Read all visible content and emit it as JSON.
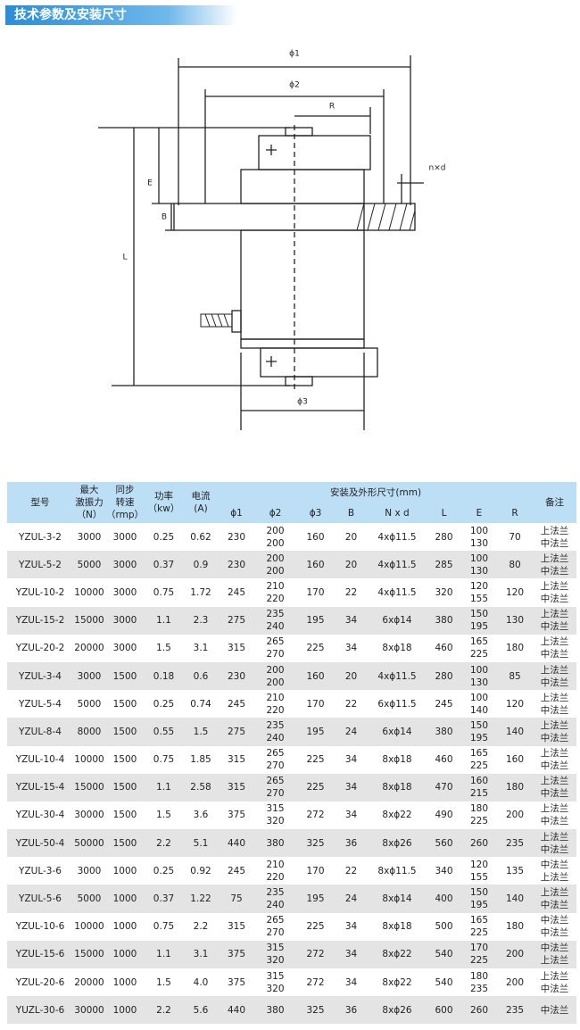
{
  "header": {
    "title": "技术参数及安装尺寸"
  },
  "drawing": {
    "labels": {
      "phi1": "ϕ1",
      "phi2": "ϕ2",
      "r": "R",
      "nd": "n×d",
      "e": "E",
      "b": "B",
      "l": "L",
      "phi3": "ϕ3"
    }
  },
  "table": {
    "headers": [
      [
        "型号"
      ],
      [
        "最大",
        "激振力",
        "（N）"
      ],
      [
        "同步",
        "转速",
        "（rmp）"
      ],
      [
        "功率",
        "（kw）"
      ],
      [
        "电流",
        "(A)"
      ]
    ],
    "group_header": "安装及外形尺寸(mm)",
    "sub_headers": [
      "ϕ1",
      "ϕ2",
      "ϕ3",
      "B",
      "N x d",
      "L",
      "E",
      "R"
    ],
    "note_header": "备注",
    "rows": [
      [
        "YZUL-3-2",
        "3000",
        "3000",
        "0.25",
        "0.62",
        "230",
        [
          "200",
          "200"
        ],
        "160",
        "20",
        "4xϕ11.5",
        "280",
        [
          "100",
          "130"
        ],
        "70",
        [
          "上法兰",
          "中法兰"
        ]
      ],
      [
        "YZUL-5-2",
        "5000",
        "3000",
        "0.37",
        "0.9",
        "230",
        [
          "200",
          "200"
        ],
        "160",
        "20",
        "4xϕ11.5",
        "285",
        [
          "100",
          "130"
        ],
        "80",
        [
          "上法兰",
          "中法兰"
        ]
      ],
      [
        "YZUL-10-2",
        "10000",
        "3000",
        "0.75",
        "1.72",
        "245",
        [
          "210",
          "220"
        ],
        "170",
        "22",
        "4xϕ11.5",
        "320",
        [
          "120",
          "155"
        ],
        "120",
        [
          "上法兰",
          "中法兰"
        ]
      ],
      [
        "YZUL-15-2",
        "15000",
        "3000",
        "1.1",
        "2.3",
        "275",
        [
          "235",
          "240"
        ],
        "195",
        "34",
        "6xϕ14",
        "380",
        [
          "150",
          "195"
        ],
        "130",
        [
          "上法兰",
          "中法兰"
        ]
      ],
      [
        "YZUL-20-2",
        "20000",
        "3000",
        "1.5",
        "3.1",
        "315",
        [
          "265",
          "270"
        ],
        "225",
        "34",
        "8xϕ18",
        "460",
        [
          "165",
          "225"
        ],
        "180",
        [
          "上法兰",
          "中法兰"
        ]
      ],
      [
        "YZUL-3-4",
        "3000",
        "1500",
        "0.18",
        "0.6",
        "230",
        [
          "200",
          "200"
        ],
        "160",
        "20",
        "4xϕ11.5",
        "280",
        [
          "100",
          "130"
        ],
        "85",
        [
          "上法兰",
          "中法兰"
        ]
      ],
      [
        "YZUL-5-4",
        "5000",
        "1500",
        "0.25",
        "0.74",
        "245",
        [
          "210",
          "220"
        ],
        "170",
        "22",
        "6xϕ11.5",
        "245",
        [
          "100",
          "140"
        ],
        "120",
        [
          "上法兰",
          "中法兰"
        ]
      ],
      [
        "YZUL-8-4",
        "8000",
        "1500",
        "0.55",
        "1.5",
        "275",
        [
          "235",
          "240"
        ],
        "195",
        "24",
        "6xϕ14",
        "380",
        [
          "150",
          "195"
        ],
        "140",
        [
          "上法兰",
          "中法兰"
        ]
      ],
      [
        "YZUL-10-4",
        "10000",
        "1500",
        "0.75",
        "1.85",
        "315",
        [
          "265",
          "270"
        ],
        "225",
        "34",
        "8xϕ18",
        "460",
        [
          "165",
          "225"
        ],
        "160",
        [
          "上法兰",
          "中法兰"
        ]
      ],
      [
        "YZUL-15-4",
        "15000",
        "1500",
        "1.1",
        "2.58",
        "315",
        [
          "265",
          "270"
        ],
        "225",
        "34",
        "8xϕ18",
        "470",
        [
          "160",
          "215"
        ],
        "180",
        [
          "上法兰",
          "中法兰"
        ]
      ],
      [
        "YZUL-30-4",
        "30000",
        "1500",
        "1.5",
        "3.6",
        "375",
        [
          "315",
          "320"
        ],
        "272",
        "34",
        "8xϕ22",
        "490",
        [
          "180",
          "225"
        ],
        "200",
        [
          "上法兰",
          "中法兰"
        ]
      ],
      [
        "YZUL-50-4",
        "50000",
        "1500",
        "2.2",
        "5.1",
        "440",
        "380",
        "325",
        "36",
        "8xϕ26",
        "560",
        "260",
        "235",
        [
          "上法兰",
          "中法兰"
        ]
      ],
      [
        "YZUL-3-6",
        "3000",
        "1000",
        "0.25",
        "0.92",
        "245",
        [
          "210",
          "220"
        ],
        "170",
        "22",
        "8xϕ11.5",
        "340",
        [
          "120",
          "155"
        ],
        "135",
        [
          "中法兰",
          "上法兰"
        ]
      ],
      [
        "YZUL-5-6",
        "5000",
        "1000",
        "0.37",
        "1.22",
        "75",
        [
          "235",
          "240"
        ],
        "195",
        "24",
        "8xϕ14",
        "400",
        [
          "150",
          "195"
        ],
        "140",
        [
          "上法兰",
          "中法兰"
        ]
      ],
      [
        "YZUL-10-6",
        "10000",
        "1000",
        "0.75",
        "2.2",
        "315",
        [
          "265",
          "270"
        ],
        "225",
        "34",
        "8xϕ18",
        "500",
        [
          "165",
          "225"
        ],
        "180",
        [
          "中法兰",
          "中法兰"
        ]
      ],
      [
        "YZUL-15-6",
        "15000",
        "1000",
        "1.1",
        "3.1",
        "375",
        [
          "315",
          "320"
        ],
        "272",
        "34",
        "8xϕ22",
        "540",
        [
          "170",
          "225"
        ],
        "200",
        [
          "中法兰",
          "上法兰"
        ]
      ],
      [
        "YZUL-20-6",
        "20000",
        "1000",
        "1.5",
        "4.0",
        "375",
        [
          "315",
          "320"
        ],
        "272",
        "34",
        "8xϕ22",
        "540",
        [
          "180",
          "235"
        ],
        "200",
        [
          "上法兰",
          "中法兰"
        ]
      ],
      [
        "YUZL-30-6",
        "30000",
        "1000",
        "2.2",
        "5.6",
        "440",
        "380",
        "325",
        "36",
        "8xϕ26",
        "600",
        "260",
        "235",
        "中法兰"
      ]
    ]
  }
}
